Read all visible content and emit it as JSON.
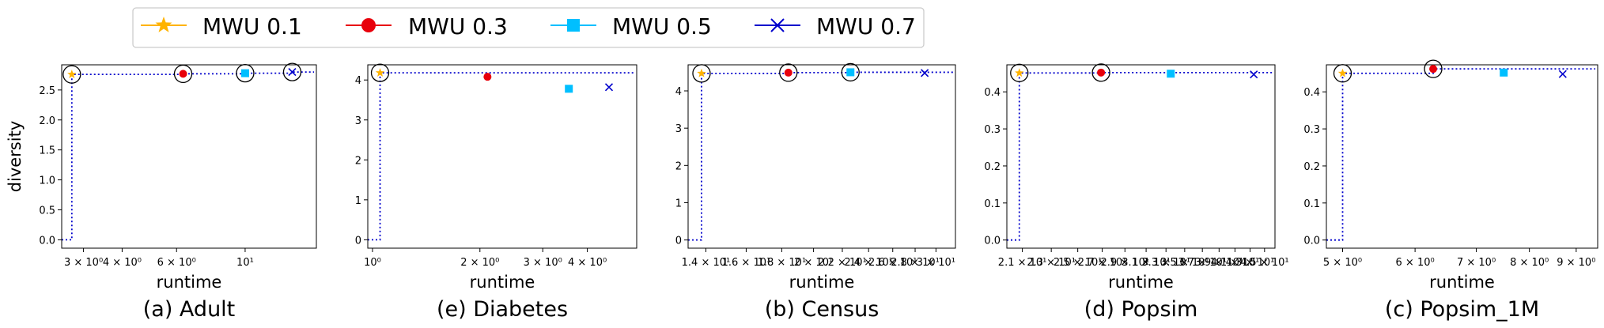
{
  "legend": [
    {
      "label": "MWU 0.1",
      "color": "#FFB300",
      "marker": "star"
    },
    {
      "label": "MWU 0.3",
      "color": "#E8000B",
      "marker": "circle"
    },
    {
      "label": "MWU 0.5",
      "color": "#00BFFF",
      "marker": "square"
    },
    {
      "label": "MWU 0.7",
      "color": "#0000CC",
      "marker": "x"
    }
  ],
  "frontier_color": "#0000CC",
  "pareto_marker": "open-circle",
  "chart_data": [
    {
      "type": "scatter",
      "caption": "(a) Adult",
      "xlabel": "runtime",
      "ylabel": "diversity",
      "xscale": "log",
      "xlim": [
        2.55,
        17.0
      ],
      "ylim": [
        -0.14,
        2.92
      ],
      "xticks": [
        {
          "v": 3,
          "label": "3 × 10⁰"
        },
        {
          "v": 4,
          "label": "4 × 10⁰"
        },
        {
          "v": 6,
          "label": "6 × 10⁰"
        },
        {
          "v": 10,
          "label": "10¹"
        }
      ],
      "yticks": [
        {
          "v": 0.0,
          "label": "0.0"
        },
        {
          "v": 0.5,
          "label": "0.5"
        },
        {
          "v": 1.0,
          "label": "1.0"
        },
        {
          "v": 1.5,
          "label": "1.5"
        },
        {
          "v": 2.0,
          "label": "2.0"
        },
        {
          "v": 2.5,
          "label": "2.5"
        }
      ],
      "points": [
        {
          "series": "MWU 0.1",
          "x": 2.75,
          "y": 2.76,
          "pareto": true
        },
        {
          "series": "MWU 0.3",
          "x": 6.3,
          "y": 2.77,
          "pareto": true
        },
        {
          "series": "MWU 0.5",
          "x": 10.0,
          "y": 2.78,
          "pareto": true
        },
        {
          "series": "MWU 0.7",
          "x": 14.2,
          "y": 2.8,
          "pareto": true
        }
      ]
    },
    {
      "type": "scatter",
      "caption": "(e) Diabetes",
      "xlabel": "runtime",
      "ylabel": "",
      "xscale": "log",
      "xlim": [
        0.97,
        5.5
      ],
      "ylim": [
        -0.21,
        4.38
      ],
      "xticks": [
        {
          "v": 1,
          "label": "10⁰"
        },
        {
          "v": 2,
          "label": "2 × 10⁰"
        },
        {
          "v": 3,
          "label": "3 × 10⁰"
        },
        {
          "v": 4,
          "label": "4 × 10⁰"
        }
      ],
      "yticks": [
        {
          "v": 0,
          "label": "0"
        },
        {
          "v": 1,
          "label": "1"
        },
        {
          "v": 2,
          "label": "2"
        },
        {
          "v": 3,
          "label": "3"
        },
        {
          "v": 4,
          "label": "4"
        }
      ],
      "points": [
        {
          "series": "MWU 0.1",
          "x": 1.05,
          "y": 4.18,
          "pareto": true
        },
        {
          "series": "MWU 0.3",
          "x": 2.1,
          "y": 4.08,
          "pareto": false
        },
        {
          "series": "MWU 0.5",
          "x": 3.55,
          "y": 3.78,
          "pareto": false
        },
        {
          "series": "MWU 0.7",
          "x": 4.6,
          "y": 3.82,
          "pareto": false
        }
      ]
    },
    {
      "type": "scatter",
      "caption": "(b) Census",
      "xlabel": "runtime",
      "ylabel": "",
      "xscale": "log",
      "xlim": [
        13.2,
        32.0
      ],
      "ylim": [
        -0.22,
        4.7
      ],
      "xticks": [
        {
          "v": 14,
          "label": "1.4 × 10¹"
        },
        {
          "v": 16,
          "label": "1.6 × 10¹"
        },
        {
          "v": 18,
          "label": "1.8 × 10¹"
        },
        {
          "v": 20,
          "label": "2 × 10¹"
        },
        {
          "v": 22,
          "label": "2.2 × 10¹"
        },
        {
          "v": 24,
          "label": "2.4 × 10¹"
        },
        {
          "v": 26,
          "label": "2.6 × 10¹"
        },
        {
          "v": 28,
          "label": "2.8 × 10¹"
        },
        {
          "v": 30,
          "label": "3 × 10¹"
        }
      ],
      "yticks": [
        {
          "v": 0,
          "label": "0"
        },
        {
          "v": 1,
          "label": "1"
        },
        {
          "v": 2,
          "label": "2"
        },
        {
          "v": 3,
          "label": "3"
        },
        {
          "v": 4,
          "label": "4"
        }
      ],
      "points": [
        {
          "series": "MWU 0.1",
          "x": 13.8,
          "y": 4.47,
          "pareto": true
        },
        {
          "series": "MWU 0.3",
          "x": 18.4,
          "y": 4.49,
          "pareto": true
        },
        {
          "series": "MWU 0.5",
          "x": 22.6,
          "y": 4.5,
          "pareto": true
        },
        {
          "series": "MWU 0.7",
          "x": 28.9,
          "y": 4.48,
          "pareto": false
        }
      ]
    },
    {
      "type": "scatter",
      "caption": "(d) Popsim",
      "xlabel": "runtime",
      "ylabel": "",
      "xscale": "log",
      "xlim": [
        20.0,
        46.5
      ],
      "ylim": [
        -0.022,
        0.473
      ],
      "xticks": [
        {
          "v": 21,
          "label": "2.1 × 10¹"
        },
        {
          "v": 23,
          "label": "2.3 × 10¹"
        },
        {
          "v": 25,
          "label": "2.5 × 10¹"
        },
        {
          "v": 27,
          "label": "2.7 × 10¹"
        },
        {
          "v": 29,
          "label": "2.9 × 10¹"
        },
        {
          "v": 31,
          "label": "3.1 × 10¹"
        },
        {
          "v": 33,
          "label": "3.3 × 10¹"
        },
        {
          "v": 35,
          "label": "3.5 × 10¹"
        },
        {
          "v": 37,
          "label": "3.7 × 10¹"
        },
        {
          "v": 39,
          "label": "3.9 × 10¹"
        },
        {
          "v": 41,
          "label": "4.1 × 10¹"
        },
        {
          "v": 43,
          "label": "4.3 × 10¹"
        },
        {
          "v": 45,
          "label": "4.5 × 10¹"
        }
      ],
      "yticks": [
        {
          "v": 0.0,
          "label": "0.0"
        },
        {
          "v": 0.1,
          "label": "0.1"
        },
        {
          "v": 0.2,
          "label": "0.2"
        },
        {
          "v": 0.3,
          "label": "0.3"
        },
        {
          "v": 0.4,
          "label": "0.4"
        }
      ],
      "points": [
        {
          "series": "MWU 0.1",
          "x": 20.8,
          "y": 0.451,
          "pareto": true
        },
        {
          "series": "MWU 0.3",
          "x": 26.9,
          "y": 0.452,
          "pareto": true
        },
        {
          "series": "MWU 0.5",
          "x": 33.5,
          "y": 0.449,
          "pareto": false
        },
        {
          "series": "MWU 0.7",
          "x": 43.5,
          "y": 0.447,
          "pareto": false
        }
      ]
    },
    {
      "type": "scatter",
      "caption": "(c) Popsim_1M",
      "xlabel": "runtime",
      "ylabel": "",
      "xscale": "log",
      "xlim": [
        4.8,
        9.5
      ],
      "ylim": [
        -0.022,
        0.473
      ],
      "xticks": [
        {
          "v": 5,
          "label": "5 × 10⁰"
        },
        {
          "v": 6,
          "label": "6 × 10⁰"
        },
        {
          "v": 7,
          "label": "7 × 10⁰"
        },
        {
          "v": 8,
          "label": "8 × 10⁰"
        },
        {
          "v": 9,
          "label": "9 × 10⁰"
        }
      ],
      "yticks": [
        {
          "v": 0.0,
          "label": "0.0"
        },
        {
          "v": 0.1,
          "label": "0.1"
        },
        {
          "v": 0.2,
          "label": "0.2"
        },
        {
          "v": 0.3,
          "label": "0.3"
        },
        {
          "v": 0.4,
          "label": "0.4"
        }
      ],
      "points": [
        {
          "series": "MWU 0.1",
          "x": 5.0,
          "y": 0.45,
          "pareto": true
        },
        {
          "series": "MWU 0.3",
          "x": 6.28,
          "y": 0.462,
          "pareto": true
        },
        {
          "series": "MWU 0.5",
          "x": 7.5,
          "y": 0.452,
          "pareto": false
        },
        {
          "series": "MWU 0.7",
          "x": 8.7,
          "y": 0.448,
          "pareto": false
        }
      ]
    }
  ]
}
